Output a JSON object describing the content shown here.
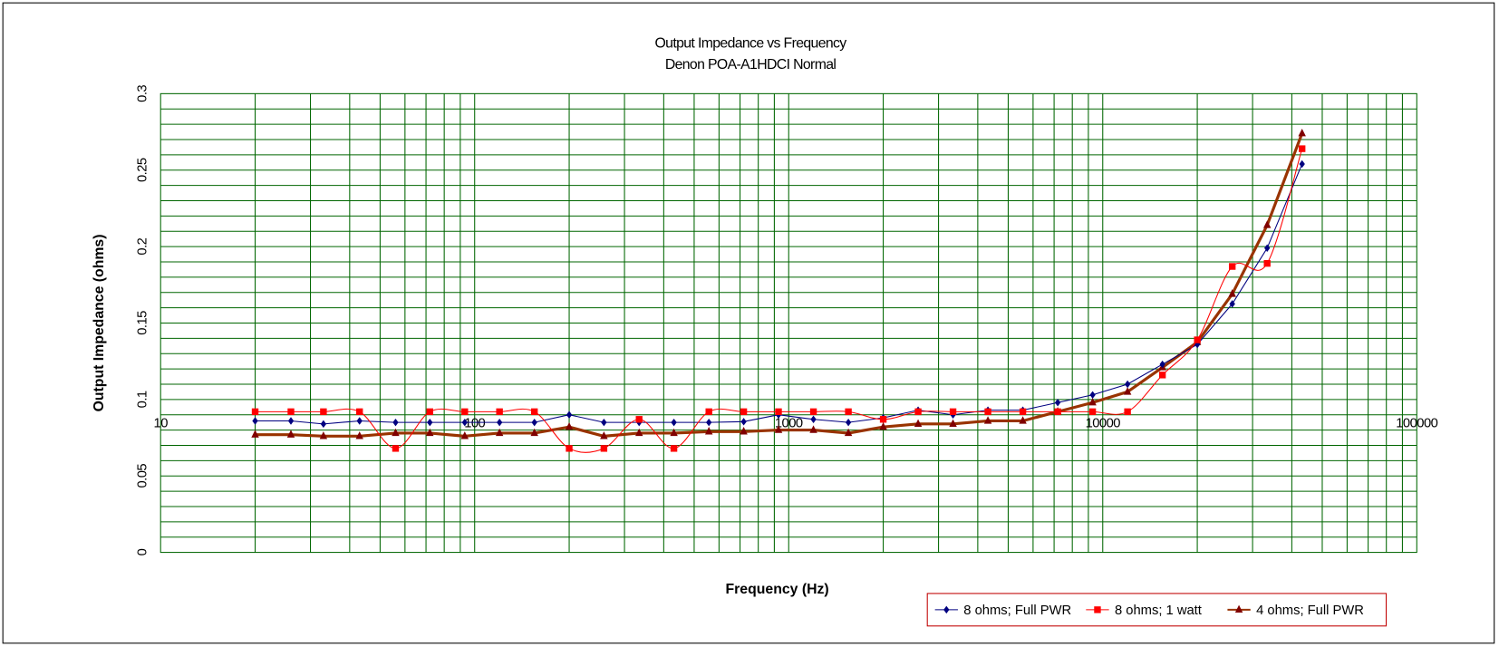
{
  "chart_data": {
    "type": "line",
    "title": "Output Impedance  vs Frequency",
    "subtitle": "Denon POA-A1HDCI Normal",
    "xlabel": "Frequency (Hz)",
    "ylabel": "Output Impedance (ohms)",
    "xscale": "log",
    "xlim": [
      10,
      100000
    ],
    "ylim": [
      0,
      0.3
    ],
    "grid": true,
    "legend_position": "bottom-right",
    "x_tick_labels": [
      "10",
      "100",
      "1000",
      "10000",
      "100000"
    ],
    "y_tick_labels": [
      "0",
      "0.05",
      "0.1",
      "0.15",
      "0.2",
      "0.25",
      "0.3"
    ],
    "x": [
      20,
      26,
      33,
      43,
      56,
      72,
      93,
      120,
      155,
      200,
      258,
      334,
      431,
      557,
      719,
      928,
      1199,
      1549,
      2000,
      2583,
      3336,
      4309,
      5566,
      7189,
      9285,
      11994,
      15492,
      20010,
      25847,
      33385,
      43120
    ],
    "series": [
      {
        "name": "8 ohms; Full PWR",
        "color": "#000080",
        "marker": "diamond",
        "smooth": false,
        "values": [
          0.086,
          0.086,
          0.084,
          0.086,
          0.085,
          0.085,
          0.085,
          0.085,
          0.085,
          0.09,
          0.085,
          0.085,
          0.085,
          0.085,
          0.0855,
          0.09,
          0.087,
          0.085,
          0.088,
          0.093,
          0.09,
          0.093,
          0.093,
          0.098,
          0.103,
          0.11,
          0.123,
          0.136,
          0.1625,
          0.199,
          0.254
        ]
      },
      {
        "name": "8 ohms; 1 watt",
        "color": "#ff0000",
        "marker": "square",
        "smooth": true,
        "values": [
          0.092,
          0.092,
          0.092,
          0.092,
          0.068,
          0.092,
          0.092,
          0.092,
          0.092,
          0.068,
          0.068,
          0.087,
          0.068,
          0.092,
          0.092,
          0.092,
          0.092,
          0.092,
          0.087,
          0.092,
          0.092,
          0.092,
          0.092,
          0.092,
          0.092,
          0.092,
          0.116,
          0.139,
          0.187,
          0.189,
          0.264
        ]
      },
      {
        "name": "4 ohms; Full PWR",
        "color": "#993300",
        "marker": "triangle",
        "smooth": false,
        "values": [
          0.077,
          0.077,
          0.076,
          0.076,
          0.078,
          0.078,
          0.076,
          0.078,
          0.078,
          0.082,
          0.076,
          0.078,
          0.078,
          0.079,
          0.079,
          0.08,
          0.08,
          0.078,
          0.082,
          0.084,
          0.084,
          0.086,
          0.086,
          0.092,
          0.098,
          0.105,
          0.121,
          0.1375,
          0.169,
          0.214,
          0.274
        ]
      }
    ]
  }
}
